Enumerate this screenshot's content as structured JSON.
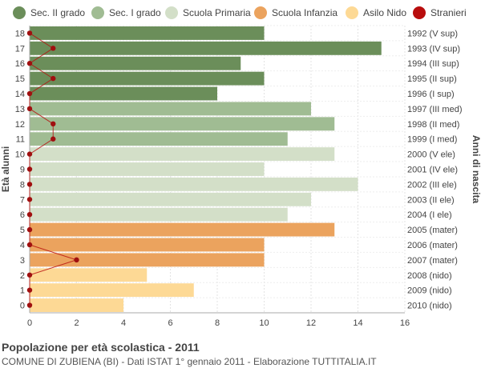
{
  "chart_data": {
    "type": "bar",
    "orientation": "horizontal",
    "title": "Popolazione per età scolastica - 2011",
    "subtitle": "COMUNE DI ZUBIENA (BI) - Dati ISTAT 1° gennaio 2011 - Elaborazione TUTTITALIA.IT",
    "ylabel": "Età alunni",
    "ylabel_right": "Anni di nascita",
    "xlim": [
      0,
      16
    ],
    "xticks": [
      0,
      2,
      4,
      6,
      8,
      10,
      12,
      14,
      16
    ],
    "grid": true,
    "legend_position": "top",
    "legend": [
      {
        "name": "Sec. II grado",
        "color": "#6b8e5a"
      },
      {
        "name": "Sec. I grado",
        "color": "#a0bc93"
      },
      {
        "name": "Scuola Primaria",
        "color": "#d3dfc8"
      },
      {
        "name": "Scuola Infanzia",
        "color": "#eba35e"
      },
      {
        "name": "Asilo Nido",
        "color": "#fdd995"
      },
      {
        "name": "Stranieri",
        "color": "#b80d0d"
      }
    ],
    "rows": [
      {
        "age": "18",
        "birth": "1992 (V sup)",
        "value": 10,
        "stranieri": 0,
        "category": "Sec. II grado"
      },
      {
        "age": "17",
        "birth": "1993 (IV sup)",
        "value": 15,
        "stranieri": 1,
        "category": "Sec. II grado"
      },
      {
        "age": "16",
        "birth": "1994 (III sup)",
        "value": 9,
        "stranieri": 0,
        "category": "Sec. II grado"
      },
      {
        "age": "15",
        "birth": "1995 (II sup)",
        "value": 10,
        "stranieri": 1,
        "category": "Sec. II grado"
      },
      {
        "age": "14",
        "birth": "1996 (I sup)",
        "value": 8,
        "stranieri": 0,
        "category": "Sec. II grado"
      },
      {
        "age": "13",
        "birth": "1997 (III med)",
        "value": 12,
        "stranieri": 0,
        "category": "Sec. I grado"
      },
      {
        "age": "12",
        "birth": "1998 (II med)",
        "value": 13,
        "stranieri": 1,
        "category": "Sec. I grado"
      },
      {
        "age": "11",
        "birth": "1999 (I med)",
        "value": 11,
        "stranieri": 1,
        "category": "Sec. I grado"
      },
      {
        "age": "10",
        "birth": "2000 (V ele)",
        "value": 13,
        "stranieri": 0,
        "category": "Scuola Primaria"
      },
      {
        "age": "9",
        "birth": "2001 (IV ele)",
        "value": 10,
        "stranieri": 0,
        "category": "Scuola Primaria"
      },
      {
        "age": "8",
        "birth": "2002 (III ele)",
        "value": 14,
        "stranieri": 0,
        "category": "Scuola Primaria"
      },
      {
        "age": "7",
        "birth": "2003 (II ele)",
        "value": 12,
        "stranieri": 0,
        "category": "Scuola Primaria"
      },
      {
        "age": "6",
        "birth": "2004 (I ele)",
        "value": 11,
        "stranieri": 0,
        "category": "Scuola Primaria"
      },
      {
        "age": "5",
        "birth": "2005 (mater)",
        "value": 13,
        "stranieri": 0,
        "category": "Scuola Infanzia"
      },
      {
        "age": "4",
        "birth": "2006 (mater)",
        "value": 10,
        "stranieri": 0,
        "category": "Scuola Infanzia"
      },
      {
        "age": "3",
        "birth": "2007 (mater)",
        "value": 10,
        "stranieri": 2,
        "category": "Scuola Infanzia"
      },
      {
        "age": "2",
        "birth": "2008 (nido)",
        "value": 5,
        "stranieri": 0,
        "category": "Asilo Nido"
      },
      {
        "age": "1",
        "birth": "2009 (nido)",
        "value": 7,
        "stranieri": 0,
        "category": "Asilo Nido"
      },
      {
        "age": "0",
        "birth": "2010 (nido)",
        "value": 4,
        "stranieri": 0,
        "category": "Asilo Nido"
      }
    ]
  }
}
